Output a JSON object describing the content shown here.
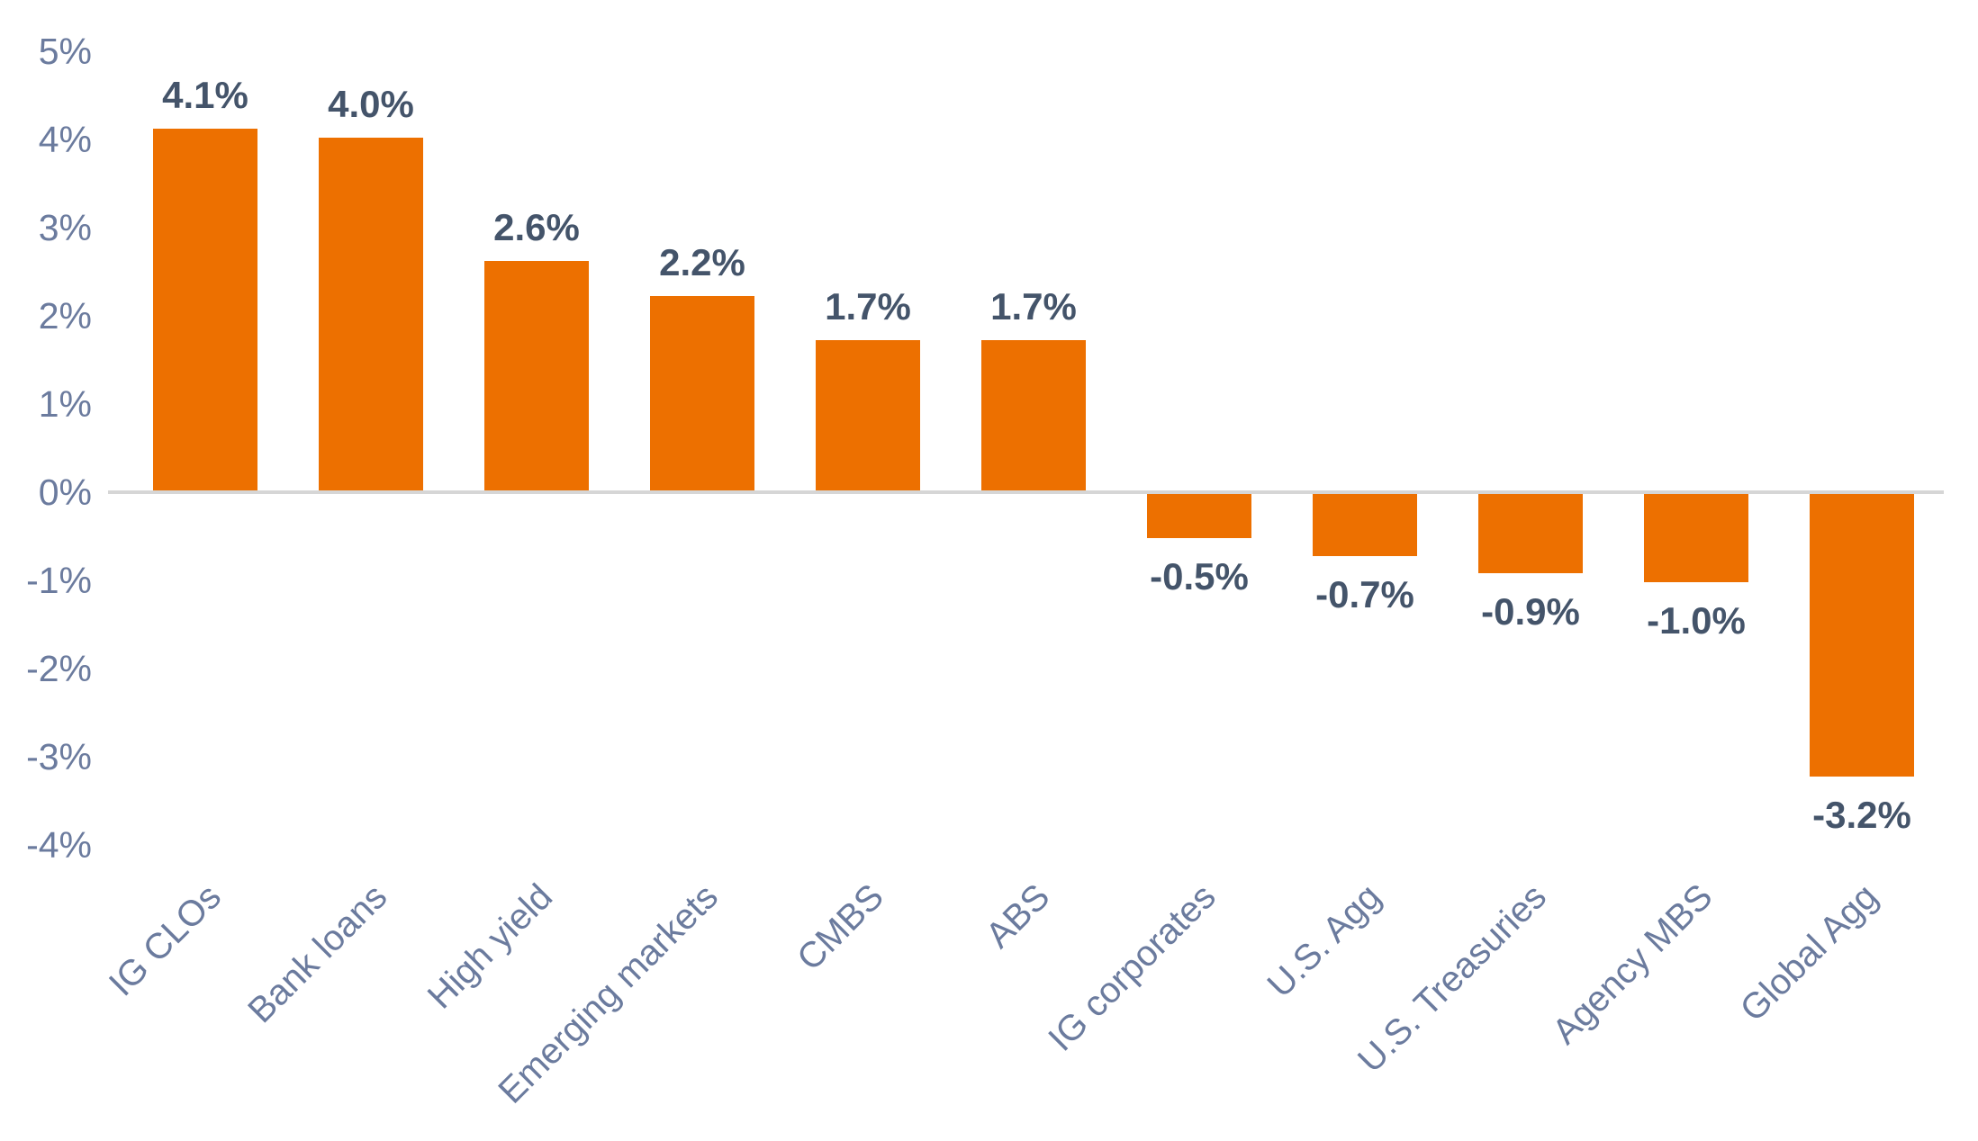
{
  "chart_data": {
    "type": "bar",
    "title": "",
    "xlabel": "",
    "ylabel": "",
    "categories": [
      "IG CLOs",
      "Bank loans",
      "High yield",
      "Emerging markets",
      "CMBS",
      "ABS",
      "IG corporates",
      "U.S. Agg",
      "U.S. Treasuries",
      "Agency MBS",
      "Global Agg"
    ],
    "values": [
      4.1,
      4.0,
      2.6,
      2.2,
      1.7,
      1.7,
      -0.5,
      -0.7,
      -0.9,
      -1.0,
      -3.2
    ],
    "value_labels": [
      "4.1%",
      "4.0%",
      "2.6%",
      "2.2%",
      "1.7%",
      "1.7%",
      "-0.5%",
      "-0.7%",
      "-0.9%",
      "-1.0%",
      "-3.2%"
    ],
    "ylim": [
      -4,
      5
    ],
    "ytick_step": 1,
    "yticks": [
      {
        "value": 5,
        "label": "5%"
      },
      {
        "value": 4,
        "label": "4%"
      },
      {
        "value": 3,
        "label": "3%"
      },
      {
        "value": 2,
        "label": "2%"
      },
      {
        "value": 1,
        "label": "1%"
      },
      {
        "value": 0,
        "label": "0%"
      },
      {
        "value": -1,
        "label": "-1%"
      },
      {
        "value": -2,
        "label": "-2%"
      },
      {
        "value": -3,
        "label": "-3%"
      },
      {
        "value": -4,
        "label": "-4%"
      }
    ],
    "grid": false,
    "legend": false,
    "category_label_rotation_deg": -45,
    "colors": {
      "bar": "#ED7000",
      "value_label": "#44546A",
      "axis_label": "#6B7B9E",
      "category_label": "#6B7B9E",
      "zero_line": "#D6D6D6",
      "background": "#FFFFFF"
    }
  }
}
